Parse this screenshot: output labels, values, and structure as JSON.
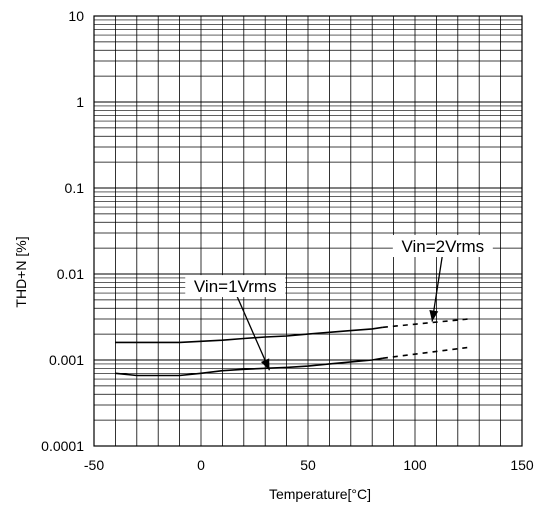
{
  "chart_data": {
    "type": "line",
    "title": "",
    "xlabel": "Temperature[°C]",
    "ylabel": "THD+N [%]",
    "xlim": [
      -50,
      150
    ],
    "ylim": [
      0.0001,
      10
    ],
    "yscale": "log",
    "x_ticks": [
      -50,
      0,
      50,
      100,
      150
    ],
    "x_tick_labels": [
      "-50",
      "0",
      "50",
      "100",
      "150"
    ],
    "y_ticks": [
      0.0001,
      0.001,
      0.01,
      0.1,
      1,
      10
    ],
    "y_tick_labels": [
      "0.0001",
      "0.001",
      "0.01",
      "0.1",
      "1",
      "10"
    ],
    "grid": true,
    "series": [
      {
        "name": "Vin=2Vrms",
        "x": [
          -40,
          -30,
          -20,
          -10,
          0,
          10,
          20,
          30,
          40,
          50,
          60,
          70,
          80,
          85
        ],
        "y": [
          0.0016,
          0.0016,
          0.0016,
          0.0016,
          0.00165,
          0.0017,
          0.00178,
          0.00185,
          0.0019,
          0.002,
          0.0021,
          0.0022,
          0.0023,
          0.0024
        ],
        "extension_dashed": {
          "x": [
            85,
            125
          ],
          "y": [
            0.0024,
            0.003
          ]
        }
      },
      {
        "name": "Vin=1Vrms",
        "x": [
          -40,
          -30,
          -20,
          -10,
          0,
          10,
          20,
          30,
          40,
          50,
          60,
          70,
          80,
          85
        ],
        "y": [
          0.0007,
          0.00066,
          0.00066,
          0.00066,
          0.0007,
          0.00075,
          0.00078,
          0.0008,
          0.00082,
          0.00085,
          0.0009,
          0.00095,
          0.001,
          0.00105
        ],
        "extension_dashed": {
          "x": [
            85,
            125
          ],
          "y": [
            0.00105,
            0.0014
          ]
        }
      }
    ],
    "annotations": [
      {
        "text": "Vin=2Vrms",
        "anchor": {
          "x": 113,
          "y": 0.019
        },
        "arrow_to": {
          "x": 108,
          "y": 0.0028
        }
      },
      {
        "text": "Vin=1Vrms",
        "anchor": {
          "x": 16,
          "y": 0.0065
        },
        "arrow_to": {
          "x": 32,
          "y": 0.00076
        }
      }
    ]
  }
}
